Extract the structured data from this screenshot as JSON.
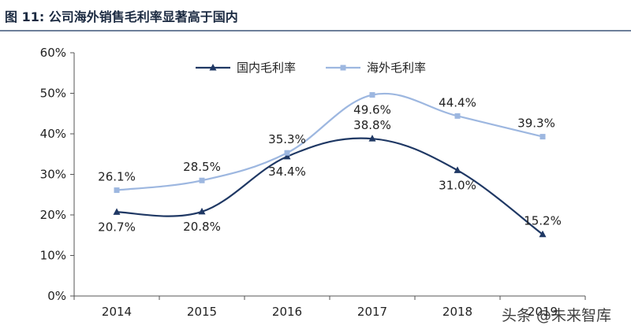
{
  "figure": {
    "title": "图 11:  公司海外销售毛利率显著高于国内"
  },
  "watermark": {
    "text": "头条 @未来智库"
  },
  "chart_data": {
    "type": "line",
    "title": "",
    "xlabel": "",
    "ylabel": "",
    "categories": [
      "2014",
      "2015",
      "2016",
      "2017",
      "2018",
      "2019"
    ],
    "ylim": [
      0,
      60
    ],
    "yticks": [
      0,
      10,
      20,
      30,
      40,
      50,
      60
    ],
    "ytick_labels": [
      "0%",
      "10%",
      "20%",
      "30%",
      "40%",
      "50%",
      "60%"
    ],
    "grid": false,
    "legend_position": "top",
    "smooth": true,
    "series": [
      {
        "name": "国内毛利率",
        "values": [
          20.7,
          20.8,
          34.4,
          38.8,
          31.0,
          15.2
        ],
        "labels": [
          "20.7%",
          "20.8%",
          "34.4%",
          "38.8%",
          "31.0%",
          "15.2%"
        ],
        "color": "#1f3864",
        "marker": "triangle"
      },
      {
        "name": "海外毛利率",
        "values": [
          26.1,
          28.5,
          35.3,
          49.6,
          44.4,
          39.3
        ],
        "labels": [
          "26.1%",
          "28.5%",
          "35.3%",
          "49.6%",
          "44.4%",
          "39.3%"
        ],
        "color": "#9db7e0",
        "marker": "square"
      }
    ]
  }
}
